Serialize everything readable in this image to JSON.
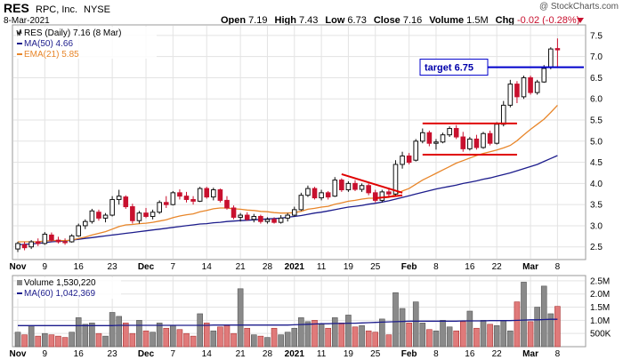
{
  "header": {
    "symbol": "RES",
    "company": "RPC, Inc.",
    "exchange": "NYSE",
    "date": "8-Mar-2021",
    "open_label": "Open",
    "open": "7.19",
    "high_label": "High",
    "high": "7.43",
    "low_label": "Low",
    "low": "6.73",
    "close_label": "Close",
    "close": "7.16",
    "volume_label": "Volume",
    "volume": "1.5M",
    "chg_label": "Chg",
    "chg": "-0.02 (-0.28%)",
    "watermark": "@ StockCharts.com"
  },
  "legend": {
    "price": "RES (Daily) 7.16 (8 Mar)",
    "ma50": "MA(50) 4.66",
    "ema21": "EMA(21) 5.85",
    "volume": "Volume 1,530,220",
    "ma60": "MA(60) 1,042,369"
  },
  "annotation": {
    "target": "target 6.75"
  },
  "colors": {
    "up": "#111111",
    "down": "#c8102e",
    "ma50": "#1c1c8c",
    "ema21": "#e8862a",
    "trend": "#e00000",
    "target": "#0000cc",
    "vol_up": "#8a8a8a",
    "vol_down": "#e07a7a",
    "neg_chg": "#c8102e"
  },
  "chart_data": [
    {
      "type": "candlestick",
      "ylim": [
        2.2,
        7.75
      ],
      "yticks": [
        2.5,
        3.0,
        3.5,
        4.0,
        4.5,
        5.0,
        5.5,
        6.0,
        6.5,
        7.0,
        7.5
      ],
      "ytick_labels": [
        "2.5",
        "3.0",
        "3.5",
        "4.0",
        "4.5",
        "5.0",
        "5.5",
        "6.0",
        "6.5",
        "7.0",
        "7.5"
      ],
      "x_labels": [
        {
          "idx": 0,
          "text": "Nov",
          "month": true
        },
        {
          "idx": 4,
          "text": "9"
        },
        {
          "idx": 9,
          "text": "16"
        },
        {
          "idx": 14,
          "text": "23"
        },
        {
          "idx": 19,
          "text": "Dec",
          "month": true
        },
        {
          "idx": 23,
          "text": "7"
        },
        {
          "idx": 28,
          "text": "14"
        },
        {
          "idx": 33,
          "text": "21"
        },
        {
          "idx": 37,
          "text": "28"
        },
        {
          "idx": 41,
          "text": "2021",
          "month": true
        },
        {
          "idx": 45,
          "text": "11"
        },
        {
          "idx": 49,
          "text": "19"
        },
        {
          "idx": 53,
          "text": "25"
        },
        {
          "idx": 58,
          "text": "Feb",
          "month": true
        },
        {
          "idx": 62,
          "text": "8"
        },
        {
          "idx": 67,
          "text": "16"
        },
        {
          "idx": 71,
          "text": "22"
        },
        {
          "idx": 76,
          "text": "Mar",
          "month": true
        },
        {
          "idx": 80,
          "text": "8"
        }
      ],
      "candles": [
        {
          "o": 2.45,
          "h": 2.62,
          "l": 2.38,
          "c": 2.58
        },
        {
          "o": 2.55,
          "h": 2.62,
          "l": 2.42,
          "c": 2.48
        },
        {
          "o": 2.5,
          "h": 2.66,
          "l": 2.45,
          "c": 2.62
        },
        {
          "o": 2.62,
          "h": 2.7,
          "l": 2.52,
          "c": 2.58
        },
        {
          "o": 2.58,
          "h": 2.85,
          "l": 2.55,
          "c": 2.8
        },
        {
          "o": 2.78,
          "h": 2.84,
          "l": 2.62,
          "c": 2.66
        },
        {
          "o": 2.66,
          "h": 2.74,
          "l": 2.58,
          "c": 2.62
        },
        {
          "o": 2.62,
          "h": 2.7,
          "l": 2.55,
          "c": 2.6
        },
        {
          "o": 2.62,
          "h": 2.8,
          "l": 2.6,
          "c": 2.76
        },
        {
          "o": 2.76,
          "h": 3.05,
          "l": 2.74,
          "c": 3.0
        },
        {
          "o": 3.0,
          "h": 3.15,
          "l": 2.92,
          "c": 3.1
        },
        {
          "o": 3.1,
          "h": 3.4,
          "l": 3.05,
          "c": 3.35
        },
        {
          "o": 3.32,
          "h": 3.38,
          "l": 3.12,
          "c": 3.18
        },
        {
          "o": 3.18,
          "h": 3.3,
          "l": 3.08,
          "c": 3.25
        },
        {
          "o": 3.25,
          "h": 3.7,
          "l": 3.22,
          "c": 3.62
        },
        {
          "o": 3.62,
          "h": 3.85,
          "l": 3.5,
          "c": 3.7
        },
        {
          "o": 3.68,
          "h": 3.72,
          "l": 3.4,
          "c": 3.45
        },
        {
          "o": 3.45,
          "h": 3.52,
          "l": 3.05,
          "c": 3.12
        },
        {
          "o": 3.12,
          "h": 3.35,
          "l": 3.05,
          "c": 3.3
        },
        {
          "o": 3.3,
          "h": 3.42,
          "l": 3.18,
          "c": 3.22
        },
        {
          "o": 3.22,
          "h": 3.38,
          "l": 3.15,
          "c": 3.32
        },
        {
          "o": 3.32,
          "h": 3.6,
          "l": 3.28,
          "c": 3.55
        },
        {
          "o": 3.55,
          "h": 3.7,
          "l": 3.42,
          "c": 3.5
        },
        {
          "o": 3.5,
          "h": 3.82,
          "l": 3.48,
          "c": 3.78
        },
        {
          "o": 3.78,
          "h": 3.86,
          "l": 3.62,
          "c": 3.7
        },
        {
          "o": 3.7,
          "h": 3.8,
          "l": 3.55,
          "c": 3.62
        },
        {
          "o": 3.62,
          "h": 3.7,
          "l": 3.5,
          "c": 3.58
        },
        {
          "o": 3.58,
          "h": 3.92,
          "l": 3.56,
          "c": 3.88
        },
        {
          "o": 3.88,
          "h": 3.92,
          "l": 3.64,
          "c": 3.68
        },
        {
          "o": 3.68,
          "h": 3.9,
          "l": 3.6,
          "c": 3.85
        },
        {
          "o": 3.85,
          "h": 3.88,
          "l": 3.55,
          "c": 3.6
        },
        {
          "o": 3.6,
          "h": 3.7,
          "l": 3.38,
          "c": 3.42
        },
        {
          "o": 3.42,
          "h": 3.48,
          "l": 3.15,
          "c": 3.2
        },
        {
          "o": 3.2,
          "h": 3.3,
          "l": 3.1,
          "c": 3.25
        },
        {
          "o": 3.25,
          "h": 3.32,
          "l": 3.12,
          "c": 3.15
        },
        {
          "o": 3.15,
          "h": 3.28,
          "l": 3.08,
          "c": 3.22
        },
        {
          "o": 3.22,
          "h": 3.26,
          "l": 3.05,
          "c": 3.1
        },
        {
          "o": 3.1,
          "h": 3.2,
          "l": 3.05,
          "c": 3.15
        },
        {
          "o": 3.15,
          "h": 3.2,
          "l": 3.05,
          "c": 3.08
        },
        {
          "o": 3.08,
          "h": 3.25,
          "l": 3.05,
          "c": 3.18
        },
        {
          "o": 3.18,
          "h": 3.3,
          "l": 3.1,
          "c": 3.25
        },
        {
          "o": 3.25,
          "h": 3.45,
          "l": 3.22,
          "c": 3.38
        },
        {
          "o": 3.38,
          "h": 3.78,
          "l": 3.35,
          "c": 3.72
        },
        {
          "o": 3.72,
          "h": 3.95,
          "l": 3.68,
          "c": 3.88
        },
        {
          "o": 3.88,
          "h": 3.92,
          "l": 3.62,
          "c": 3.66
        },
        {
          "o": 3.66,
          "h": 3.85,
          "l": 3.6,
          "c": 3.78
        },
        {
          "o": 3.78,
          "h": 3.82,
          "l": 3.62,
          "c": 3.68
        },
        {
          "o": 3.7,
          "h": 4.15,
          "l": 3.68,
          "c": 4.08
        },
        {
          "o": 4.08,
          "h": 4.12,
          "l": 3.8,
          "c": 3.85
        },
        {
          "o": 3.85,
          "h": 4.05,
          "l": 3.8,
          "c": 4.0
        },
        {
          "o": 4.0,
          "h": 4.08,
          "l": 3.82,
          "c": 3.86
        },
        {
          "o": 3.86,
          "h": 4.0,
          "l": 3.8,
          "c": 3.95
        },
        {
          "o": 3.95,
          "h": 4.0,
          "l": 3.72,
          "c": 3.78
        },
        {
          "o": 3.78,
          "h": 3.85,
          "l": 3.55,
          "c": 3.6
        },
        {
          "o": 3.6,
          "h": 3.85,
          "l": 3.55,
          "c": 3.8
        },
        {
          "o": 3.8,
          "h": 3.9,
          "l": 3.68,
          "c": 3.75
        },
        {
          "o": 3.75,
          "h": 4.55,
          "l": 3.72,
          "c": 4.45
        },
        {
          "o": 4.45,
          "h": 4.75,
          "l": 4.35,
          "c": 4.65
        },
        {
          "o": 4.65,
          "h": 4.72,
          "l": 4.45,
          "c": 4.5
        },
        {
          "o": 4.55,
          "h": 5.05,
          "l": 4.52,
          "c": 5.0
        },
        {
          "o": 5.0,
          "h": 5.3,
          "l": 4.95,
          "c": 5.2
        },
        {
          "o": 5.2,
          "h": 5.25,
          "l": 4.88,
          "c": 4.95
        },
        {
          "o": 4.95,
          "h": 5.05,
          "l": 4.8,
          "c": 4.98
        },
        {
          "o": 4.98,
          "h": 5.2,
          "l": 4.95,
          "c": 5.15
        },
        {
          "o": 5.15,
          "h": 5.35,
          "l": 5.1,
          "c": 5.3
        },
        {
          "o": 5.3,
          "h": 5.38,
          "l": 5.05,
          "c": 5.1
        },
        {
          "o": 5.1,
          "h": 5.22,
          "l": 4.75,
          "c": 4.82
        },
        {
          "o": 4.82,
          "h": 5.1,
          "l": 4.78,
          "c": 5.05
        },
        {
          "o": 5.05,
          "h": 5.15,
          "l": 4.8,
          "c": 4.85
        },
        {
          "o": 4.85,
          "h": 5.22,
          "l": 4.82,
          "c": 5.18
        },
        {
          "o": 5.18,
          "h": 5.25,
          "l": 4.9,
          "c": 4.95
        },
        {
          "o": 4.95,
          "h": 5.45,
          "l": 4.92,
          "c": 5.4
        },
        {
          "o": 5.4,
          "h": 5.95,
          "l": 5.35,
          "c": 5.85
        },
        {
          "o": 5.85,
          "h": 6.45,
          "l": 5.8,
          "c": 6.35
        },
        {
          "o": 6.35,
          "h": 6.42,
          "l": 5.9,
          "c": 6.05
        },
        {
          "o": 6.05,
          "h": 6.55,
          "l": 6.0,
          "c": 6.5
        },
        {
          "o": 6.5,
          "h": 6.55,
          "l": 6.1,
          "c": 6.15
        },
        {
          "o": 6.15,
          "h": 6.45,
          "l": 6.1,
          "c": 6.4
        },
        {
          "o": 6.4,
          "h": 6.8,
          "l": 6.38,
          "c": 6.72
        },
        {
          "o": 6.75,
          "h": 7.22,
          "l": 6.7,
          "c": 7.18
        },
        {
          "o": 7.19,
          "h": 7.43,
          "l": 6.73,
          "c": 7.16
        }
      ],
      "ma50": [
        2.55,
        2.56,
        2.57,
        2.58,
        2.6,
        2.62,
        2.63,
        2.64,
        2.66,
        2.68,
        2.7,
        2.72,
        2.74,
        2.76,
        2.78,
        2.8,
        2.82,
        2.84,
        2.86,
        2.88,
        2.9,
        2.92,
        2.94,
        2.96,
        2.98,
        3.0,
        3.02,
        3.04,
        3.05,
        3.07,
        3.08,
        3.1,
        3.11,
        3.12,
        3.13,
        3.14,
        3.15,
        3.16,
        3.17,
        3.18,
        3.2,
        3.22,
        3.24,
        3.27,
        3.3,
        3.32,
        3.35,
        3.38,
        3.41,
        3.44,
        3.46,
        3.48,
        3.51,
        3.53,
        3.56,
        3.59,
        3.63,
        3.67,
        3.71,
        3.75,
        3.79,
        3.83,
        3.87,
        3.9,
        3.93,
        3.96,
        4.0,
        4.03,
        4.06,
        4.1,
        4.13,
        4.17,
        4.21,
        4.25,
        4.3,
        4.35,
        4.4,
        4.45,
        4.52,
        4.59,
        4.66
      ],
      "ema21": [
        2.62,
        2.62,
        2.62,
        2.62,
        2.64,
        2.65,
        2.65,
        2.65,
        2.66,
        2.7,
        2.73,
        2.78,
        2.82,
        2.86,
        2.92,
        2.98,
        3.02,
        3.03,
        3.05,
        3.06,
        3.08,
        3.11,
        3.14,
        3.19,
        3.23,
        3.26,
        3.28,
        3.33,
        3.36,
        3.4,
        3.42,
        3.42,
        3.4,
        3.39,
        3.37,
        3.36,
        3.34,
        3.33,
        3.31,
        3.3,
        3.3,
        3.31,
        3.34,
        3.39,
        3.41,
        3.44,
        3.46,
        3.51,
        3.54,
        3.58,
        3.6,
        3.63,
        3.65,
        3.65,
        3.66,
        3.67,
        3.74,
        3.82,
        3.88,
        3.98,
        4.08,
        4.16,
        4.24,
        4.32,
        4.4,
        4.48,
        4.54,
        4.6,
        4.66,
        4.71,
        4.75,
        4.79,
        4.84,
        4.9,
        5.01,
        5.15,
        5.28,
        5.4,
        5.52,
        5.68,
        5.85
      ],
      "annotations": {
        "target_level": 6.75,
        "upper_trendline": [
          {
            "idx": 48,
            "y": 4.22
          },
          {
            "idx": 57,
            "y": 3.78
          }
        ],
        "lower_trendline": [
          {
            "idx": 53,
            "y": 3.65
          },
          {
            "idx": 57,
            "y": 3.72
          }
        ],
        "channel_top": 5.42,
        "channel_bottom": 4.68,
        "channel_start_idx": 60,
        "channel_end_idx": 74
      }
    },
    {
      "type": "bar",
      "name": "Volume",
      "ylim": [
        0,
        2.7
      ],
      "yticks": [
        0.5,
        1.0,
        1.5,
        2.0,
        2.5
      ],
      "ytick_labels": [
        "500K",
        "1.0M",
        "1.5M",
        "2.0M",
        "2.5M"
      ],
      "values": [
        0.55,
        0.45,
        0.8,
        0.4,
        0.5,
        0.45,
        0.4,
        0.35,
        0.55,
        1.1,
        0.85,
        0.9,
        0.5,
        0.4,
        1.3,
        1.15,
        0.9,
        0.5,
        1.0,
        0.6,
        0.55,
        0.9,
        0.7,
        0.8,
        0.65,
        0.5,
        0.4,
        1.25,
        0.9,
        0.6,
        0.75,
        0.8,
        0.5,
        2.2,
        0.7,
        0.45,
        0.4,
        0.35,
        0.7,
        0.45,
        0.55,
        0.7,
        1.1,
        0.95,
        1.0,
        0.85,
        0.7,
        1.1,
        0.9,
        1.2,
        0.75,
        0.8,
        0.6,
        0.55,
        1.05,
        0.45,
        2.05,
        1.45,
        0.9,
        1.7,
        0.9,
        0.65,
        0.6,
        1.0,
        0.75,
        0.6,
        0.95,
        1.35,
        0.7,
        1.0,
        0.85,
        0.8,
        1.0,
        0.6,
        1.7,
        2.45,
        0.95,
        1.5,
        2.3,
        1.25,
        1.53
      ],
      "ma60": [
        0.8,
        0.8,
        0.8,
        0.8,
        0.8,
        0.8,
        0.8,
        0.8,
        0.8,
        0.8,
        0.8,
        0.8,
        0.8,
        0.8,
        0.8,
        0.81,
        0.81,
        0.81,
        0.81,
        0.81,
        0.81,
        0.81,
        0.81,
        0.81,
        0.81,
        0.81,
        0.81,
        0.81,
        0.81,
        0.82,
        0.82,
        0.82,
        0.82,
        0.82,
        0.82,
        0.82,
        0.82,
        0.82,
        0.82,
        0.82,
        0.82,
        0.83,
        0.84,
        0.85,
        0.86,
        0.87,
        0.87,
        0.88,
        0.88,
        0.89,
        0.89,
        0.9,
        0.91,
        0.92,
        0.93,
        0.94,
        0.95,
        0.96,
        0.97,
        0.97,
        0.97,
        0.97,
        0.97,
        0.97,
        0.97,
        0.97,
        0.98,
        0.98,
        0.98,
        0.98,
        0.99,
        0.99,
        0.99,
        0.99,
        1.0,
        1.01,
        1.02,
        1.02,
        1.03,
        1.04,
        1.04
      ]
    }
  ]
}
